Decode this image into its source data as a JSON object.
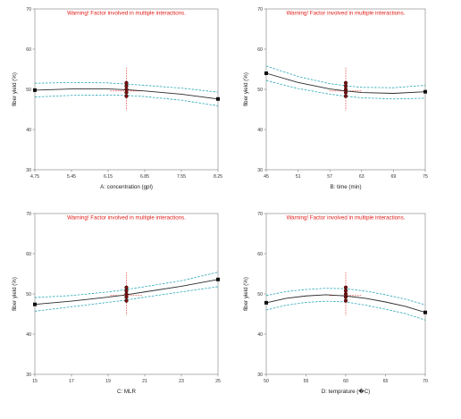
{
  "warning_text": "Warning! Factor involved in multiple interactions.",
  "colors": {
    "fit_line": "#2b2b2b",
    "confidence_band": "#27a7b8",
    "reference_line": "#e0201c",
    "design_point": "#7a1010",
    "warning": "#e0201c"
  },
  "chart_data": [
    {
      "type": "line",
      "title": "",
      "xlabel": "A: concentration (gpl)",
      "ylabel": "fiber yield (%)",
      "xlim": [
        4.75,
        8.25
      ],
      "ylim": [
        30,
        70
      ],
      "x_ticks": [
        "4.75",
        "5.45",
        "6.15",
        "6.85",
        "7.55",
        "8.25"
      ],
      "y_ticks": [
        "30",
        "40",
        "50",
        "60",
        "70"
      ],
      "reference_x": 6.5,
      "fit": {
        "x": [
          4.75,
          5.45,
          6.15,
          6.5,
          6.85,
          7.55,
          8.25
        ],
        "y": [
          49.8,
          50.1,
          50.1,
          49.9,
          49.6,
          48.8,
          47.6
        ]
      },
      "ci_upper": {
        "x": [
          4.75,
          5.45,
          6.15,
          6.5,
          6.85,
          7.55,
          8.25
        ],
        "y": [
          51.5,
          51.7,
          51.6,
          51.3,
          51.0,
          50.3,
          49.3
        ]
      },
      "ci_lower": {
        "x": [
          4.75,
          5.45,
          6.15,
          6.5,
          6.85,
          7.55,
          8.25
        ],
        "y": [
          48.1,
          48.5,
          48.6,
          48.5,
          48.2,
          47.3,
          45.9
        ]
      },
      "design_points": {
        "x": [
          6.5,
          6.5,
          6.5,
          6.5,
          6.5
        ],
        "y": [
          48.3,
          49.2,
          50.0,
          50.8,
          51.6
        ]
      },
      "end_points": {
        "x": [
          4.75,
          8.25
        ],
        "y": [
          49.8,
          47.6
        ]
      },
      "warning": true
    },
    {
      "type": "line",
      "title": "",
      "xlabel": "B: time (min)",
      "ylabel": "fiber yield (%)",
      "xlim": [
        45,
        75
      ],
      "ylim": [
        30,
        70
      ],
      "x_ticks": [
        "45",
        "51",
        "57",
        "63",
        "69",
        "75"
      ],
      "y_ticks": [
        "30",
        "40",
        "50",
        "60",
        "70"
      ],
      "reference_x": 60,
      "fit": {
        "x": [
          45,
          51,
          57,
          60,
          63,
          69,
          75
        ],
        "y": [
          54.0,
          51.7,
          50.1,
          49.6,
          49.2,
          49.0,
          49.4
        ]
      },
      "ci_upper": {
        "x": [
          45,
          51,
          57,
          60,
          63,
          69,
          75
        ],
        "y": [
          55.8,
          53.2,
          51.4,
          50.9,
          50.5,
          50.4,
          51.0
        ]
      },
      "ci_lower": {
        "x": [
          45,
          51,
          57,
          60,
          63,
          69,
          75
        ],
        "y": [
          52.2,
          50.2,
          48.8,
          48.3,
          47.9,
          47.6,
          47.8
        ]
      },
      "design_points": {
        "x": [
          60,
          60,
          60,
          60,
          60
        ],
        "y": [
          48.3,
          49.2,
          50.0,
          50.8,
          51.6
        ]
      },
      "end_points": {
        "x": [
          45,
          75
        ],
        "y": [
          54.0,
          49.4
        ]
      },
      "warning": true
    },
    {
      "type": "line",
      "title": "",
      "xlabel": "C: MLR",
      "ylabel": "fiber yield (%)",
      "xlim": [
        15,
        25
      ],
      "ylim": [
        30,
        70
      ],
      "x_ticks": [
        "15",
        "17",
        "19",
        "21",
        "23",
        "25"
      ],
      "y_ticks": [
        "30",
        "40",
        "50",
        "60",
        "70"
      ],
      "reference_x": 20,
      "fit": {
        "x": [
          15,
          17,
          19,
          20,
          21,
          23,
          25
        ],
        "y": [
          47.4,
          48.2,
          49.2,
          49.8,
          50.5,
          51.9,
          53.6
        ]
      },
      "ci_upper": {
        "x": [
          15,
          17,
          19,
          20,
          21,
          23,
          25
        ],
        "y": [
          49.1,
          49.6,
          50.5,
          51.1,
          51.8,
          53.3,
          55.4
        ]
      },
      "ci_lower": {
        "x": [
          15,
          17,
          19,
          20,
          21,
          23,
          25
        ],
        "y": [
          45.7,
          46.8,
          47.9,
          48.5,
          49.2,
          50.5,
          51.8
        ]
      },
      "design_points": {
        "x": [
          20,
          20,
          20,
          20,
          20
        ],
        "y": [
          48.3,
          49.2,
          50.0,
          50.8,
          51.6
        ]
      },
      "end_points": {
        "x": [
          15,
          25
        ],
        "y": [
          47.4,
          53.6
        ]
      },
      "warning": true
    },
    {
      "type": "line",
      "title": "",
      "xlabel": "D: temprature (�C)",
      "ylabel": "fiber yield (%)",
      "xlim": [
        50,
        70
      ],
      "ylim": [
        30,
        70
      ],
      "x_ticks": [
        "50",
        "55",
        "60",
        "65",
        "70"
      ],
      "y_ticks": [
        "30",
        "40",
        "50",
        "60",
        "70"
      ],
      "reference_x": 60,
      "fit": {
        "x": [
          50,
          52.5,
          55,
          57.5,
          60,
          62.5,
          65,
          67.5,
          70
        ],
        "y": [
          47.8,
          48.9,
          49.5,
          49.8,
          49.5,
          48.9,
          48.0,
          46.9,
          45.4
        ]
      },
      "ci_upper": {
        "x": [
          50,
          52.5,
          55,
          57.5,
          60,
          62.5,
          65,
          67.5,
          70
        ],
        "y": [
          49.6,
          50.6,
          51.1,
          51.4,
          51.3,
          50.7,
          49.8,
          48.7,
          47.3
        ]
      },
      "ci_lower": {
        "x": [
          50,
          52.5,
          55,
          57.5,
          60,
          62.5,
          65,
          67.5,
          70
        ],
        "y": [
          46.0,
          47.2,
          47.9,
          48.2,
          48.0,
          47.2,
          46.2,
          45.1,
          43.5
        ]
      },
      "design_points": {
        "x": [
          60,
          60,
          60,
          60,
          60
        ],
        "y": [
          48.3,
          49.2,
          50.0,
          50.8,
          51.6
        ]
      },
      "end_points": {
        "x": [
          50,
          70
        ],
        "y": [
          47.8,
          45.4
        ]
      },
      "warning": true
    }
  ]
}
